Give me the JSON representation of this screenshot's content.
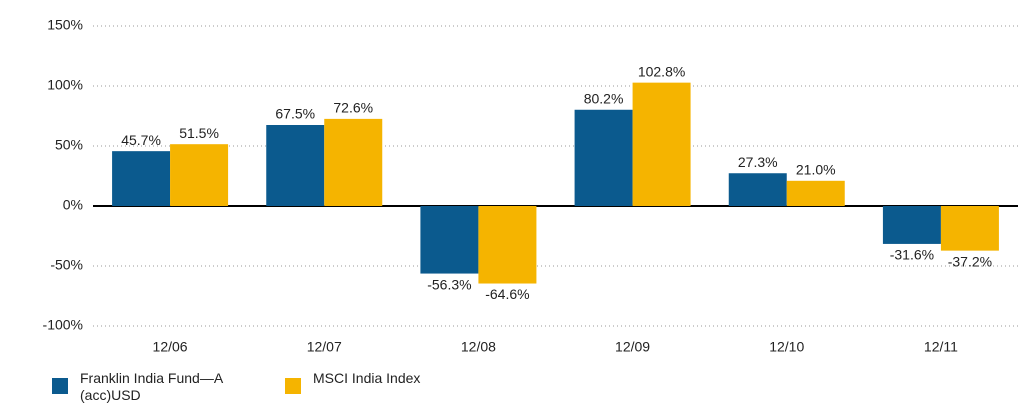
{
  "chart_data": {
    "type": "bar",
    "categories": [
      "12/06",
      "12/07",
      "12/08",
      "12/09",
      "12/10",
      "12/11"
    ],
    "series": [
      {
        "name": "Franklin India Fund—A (acc)USD",
        "color": "#0b5a8e",
        "values": [
          45.7,
          67.5,
          -56.3,
          80.2,
          27.3,
          -31.6
        ],
        "value_labels": [
          "45.7%",
          "67.5%",
          "-56.3%",
          "80.2%",
          "27.3%",
          "-31.6%"
        ]
      },
      {
        "name": "MSCI India Index",
        "color": "#f5b400",
        "values": [
          51.5,
          72.6,
          -64.6,
          102.8,
          21.0,
          -37.2
        ],
        "value_labels": [
          "51.5%",
          "72.6%",
          "-64.6%",
          "102.8%",
          "21.0%",
          "-37.2%"
        ]
      }
    ],
    "ylim": [
      -100,
      150
    ],
    "yticks": [
      {
        "value": -100,
        "label": "-100%"
      },
      {
        "value": -50,
        "label": "-50%"
      },
      {
        "value": 0,
        "label": "0%"
      },
      {
        "value": 50,
        "label": "50%"
      },
      {
        "value": 100,
        "label": "100%"
      },
      {
        "value": 150,
        "label": "150%"
      }
    ],
    "grid": true,
    "legend": "bottom"
  }
}
